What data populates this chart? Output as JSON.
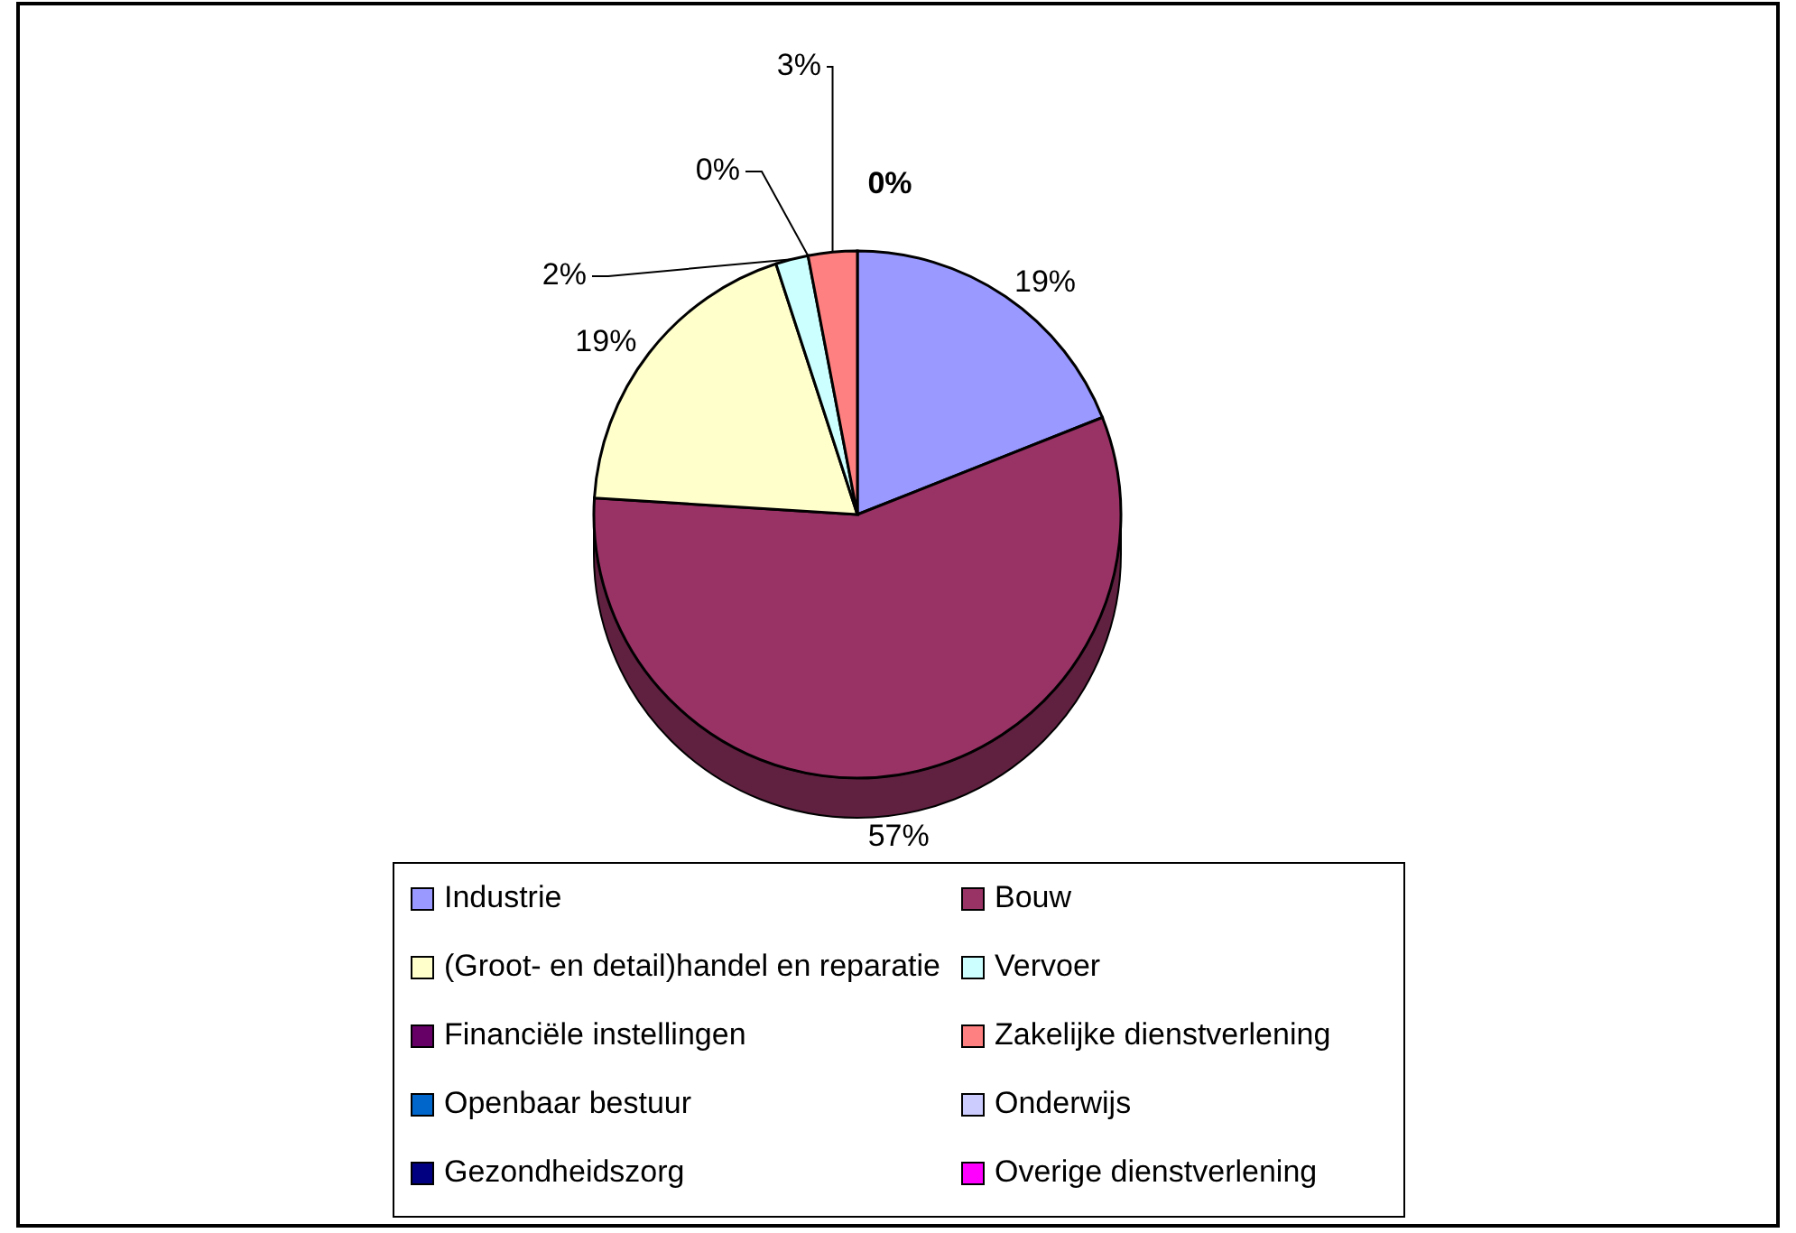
{
  "chart_data": {
    "type": "pie",
    "categories": [
      "Industrie",
      "Bouw",
      "(Groot- en detail)handel en reparatie",
      "Vervoer",
      "Financiële instellingen",
      "Zakelijke dienstverlening",
      "Openbaar bestuur",
      "Onderwijs",
      "Gezondheidszorg",
      "Overige dienstverlening"
    ],
    "values": [
      19,
      57,
      19,
      2,
      0,
      3,
      0,
      0,
      0,
      0
    ],
    "value_labels": [
      "19%",
      "57%",
      "19%",
      "2%",
      "0%",
      "3%",
      "0%",
      null,
      null,
      null
    ],
    "colors": [
      "#9999ff",
      "#993366",
      "#ffffcc",
      "#ccffff",
      "#660066",
      "#ff8080",
      "#0066cc",
      "#ccccff",
      "#000080",
      "#ff00ff"
    ],
    "legend": "bottom"
  }
}
